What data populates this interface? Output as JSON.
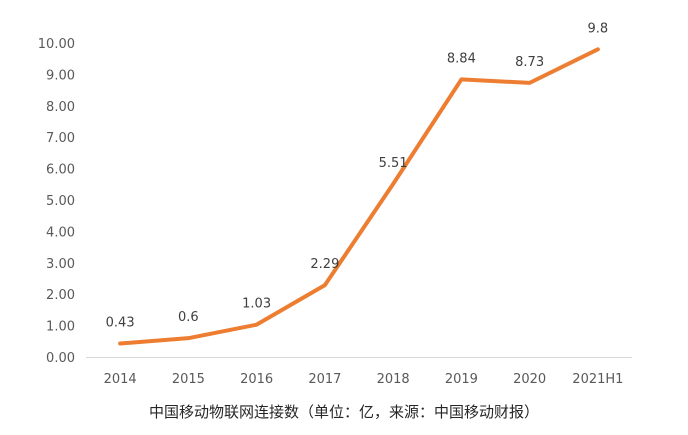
{
  "caption": "中国移动物联网连接数（单位：亿，来源：中国移动财报）",
  "chart_data": {
    "type": "line",
    "categories": [
      "2014",
      "2015",
      "2016",
      "2017",
      "2018",
      "2019",
      "2020",
      "2021H1"
    ],
    "series": [
      {
        "values": [
          0.43,
          0.6,
          1.03,
          2.29,
          5.51,
          8.84,
          8.73,
          9.8
        ],
        "data_labels": [
          "0.43",
          "0.6",
          "1.03",
          "2.29",
          "5.51",
          "8.84",
          "8.73",
          "9.8"
        ],
        "color": "#ED7D31"
      }
    ],
    "yticks": [
      "0.00",
      "1.00",
      "2.00",
      "3.00",
      "4.00",
      "5.00",
      "6.00",
      "7.00",
      "8.00",
      "9.00",
      "10.00"
    ],
    "ylim": [
      0,
      10
    ],
    "grid": false,
    "legend": "none"
  }
}
